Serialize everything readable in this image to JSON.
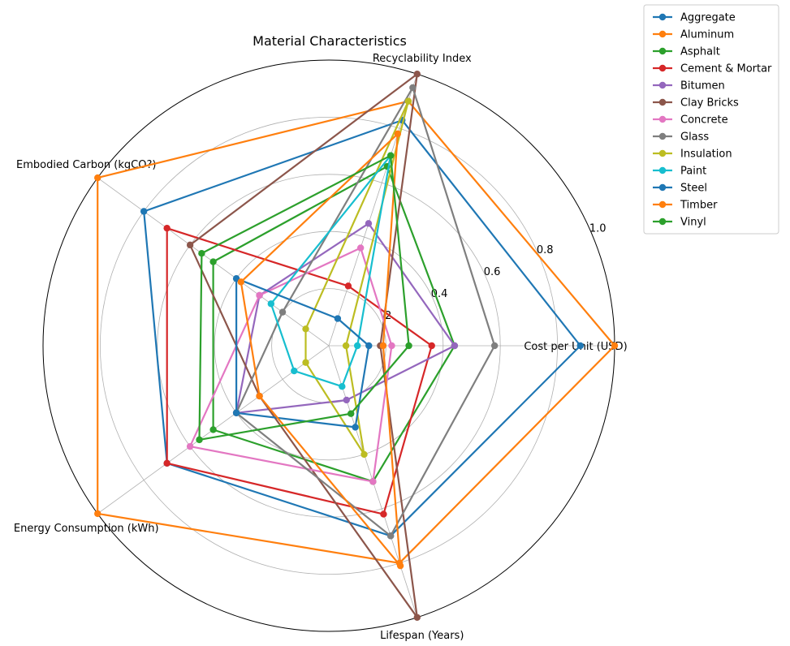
{
  "chart_data": {
    "type": "radar",
    "title": "Material Characteristics",
    "axes": [
      "Cost per Unit (USD)",
      "Recyclability Index",
      "Embodied Carbon (kgCO?)",
      "Energy Consumption (kWh)",
      "Lifespan (Years)"
    ],
    "rlim": [
      0,
      1.0
    ],
    "rticks": [
      0.2,
      0.4,
      0.6,
      0.8,
      1.0
    ],
    "rtick_labels": [
      ".2",
      "0.4",
      "0.6",
      "0.8",
      "1.0"
    ],
    "grid": true,
    "legend_placement": "upper-right-outside",
    "series": [
      {
        "name": "Aggregate",
        "color": "#1f77b4",
        "values": [
          0.88,
          0.83,
          0.8,
          0.7,
          0.7
        ]
      },
      {
        "name": "Aluminum",
        "color": "#ff7f0e",
        "values": [
          1.0,
          0.9,
          1.0,
          1.0,
          0.8
        ]
      },
      {
        "name": "Asphalt",
        "color": "#2ca02c",
        "values": [
          0.44,
          0.66,
          0.5,
          0.5,
          0.5
        ]
      },
      {
        "name": "Cement & Mortar",
        "color": "#d62728",
        "values": [
          0.36,
          0.22,
          0.7,
          0.7,
          0.62
        ]
      },
      {
        "name": "Bitumen",
        "color": "#9467bd",
        "values": [
          0.44,
          0.45,
          0.3,
          0.4,
          0.2
        ]
      },
      {
        "name": "Clay Bricks",
        "color": "#8c564b",
        "values": [
          0.18,
          1.0,
          0.6,
          0.3,
          1.0
        ]
      },
      {
        "name": "Concrete",
        "color": "#e377c2",
        "values": [
          0.22,
          0.36,
          0.3,
          0.6,
          0.5
        ]
      },
      {
        "name": "Glass",
        "color": "#7f7f7f",
        "values": [
          0.58,
          0.95,
          0.2,
          0.4,
          0.7
        ]
      },
      {
        "name": "Insulation",
        "color": "#bcbd22",
        "values": [
          0.06,
          0.9,
          0.1,
          0.1,
          0.4
        ]
      },
      {
        "name": "Paint",
        "color": "#17becf",
        "values": [
          0.1,
          0.7,
          0.25,
          0.15,
          0.15
        ]
      },
      {
        "name": "Steel",
        "color": "#1f77b4",
        "values": [
          0.14,
          0.1,
          0.4,
          0.4,
          0.3
        ]
      },
      {
        "name": "Timber",
        "color": "#ff7f0e",
        "values": [
          0.19,
          0.78,
          0.38,
          0.3,
          0.81
        ]
      },
      {
        "name": "Vinyl",
        "color": "#2ca02c",
        "values": [
          0.28,
          0.7,
          0.55,
          0.56,
          0.25
        ]
      }
    ]
  }
}
